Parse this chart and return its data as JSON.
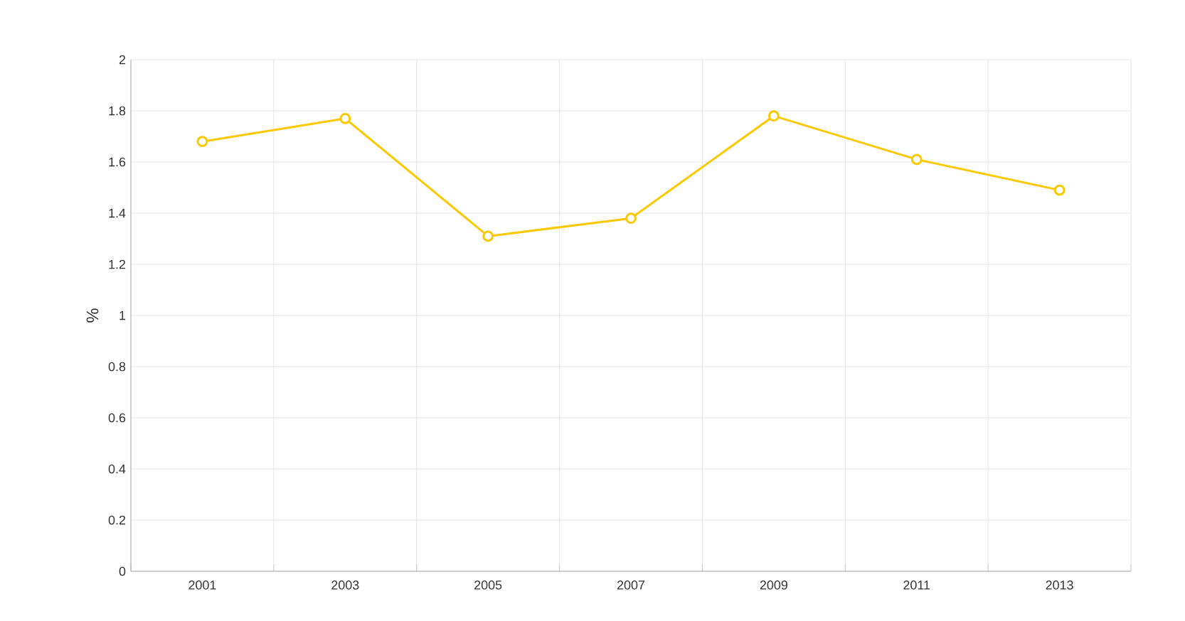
{
  "chart_data": {
    "type": "line",
    "ylabel": "%",
    "categories": [
      "2001",
      "2003",
      "2005",
      "2007",
      "2009",
      "2011",
      "2013"
    ],
    "series": [
      {
        "color": "#fcc800",
        "values": [
          1.68,
          1.77,
          1.31,
          1.38,
          1.78,
          1.61,
          1.49
        ]
      }
    ],
    "ylim": [
      0,
      2
    ],
    "yticks": [
      0,
      0.2,
      0.4,
      0.6,
      0.8,
      1,
      1.2,
      1.4,
      1.6,
      1.8,
      2
    ],
    "grid": true,
    "marker": "circle",
    "line_style": "solid"
  }
}
